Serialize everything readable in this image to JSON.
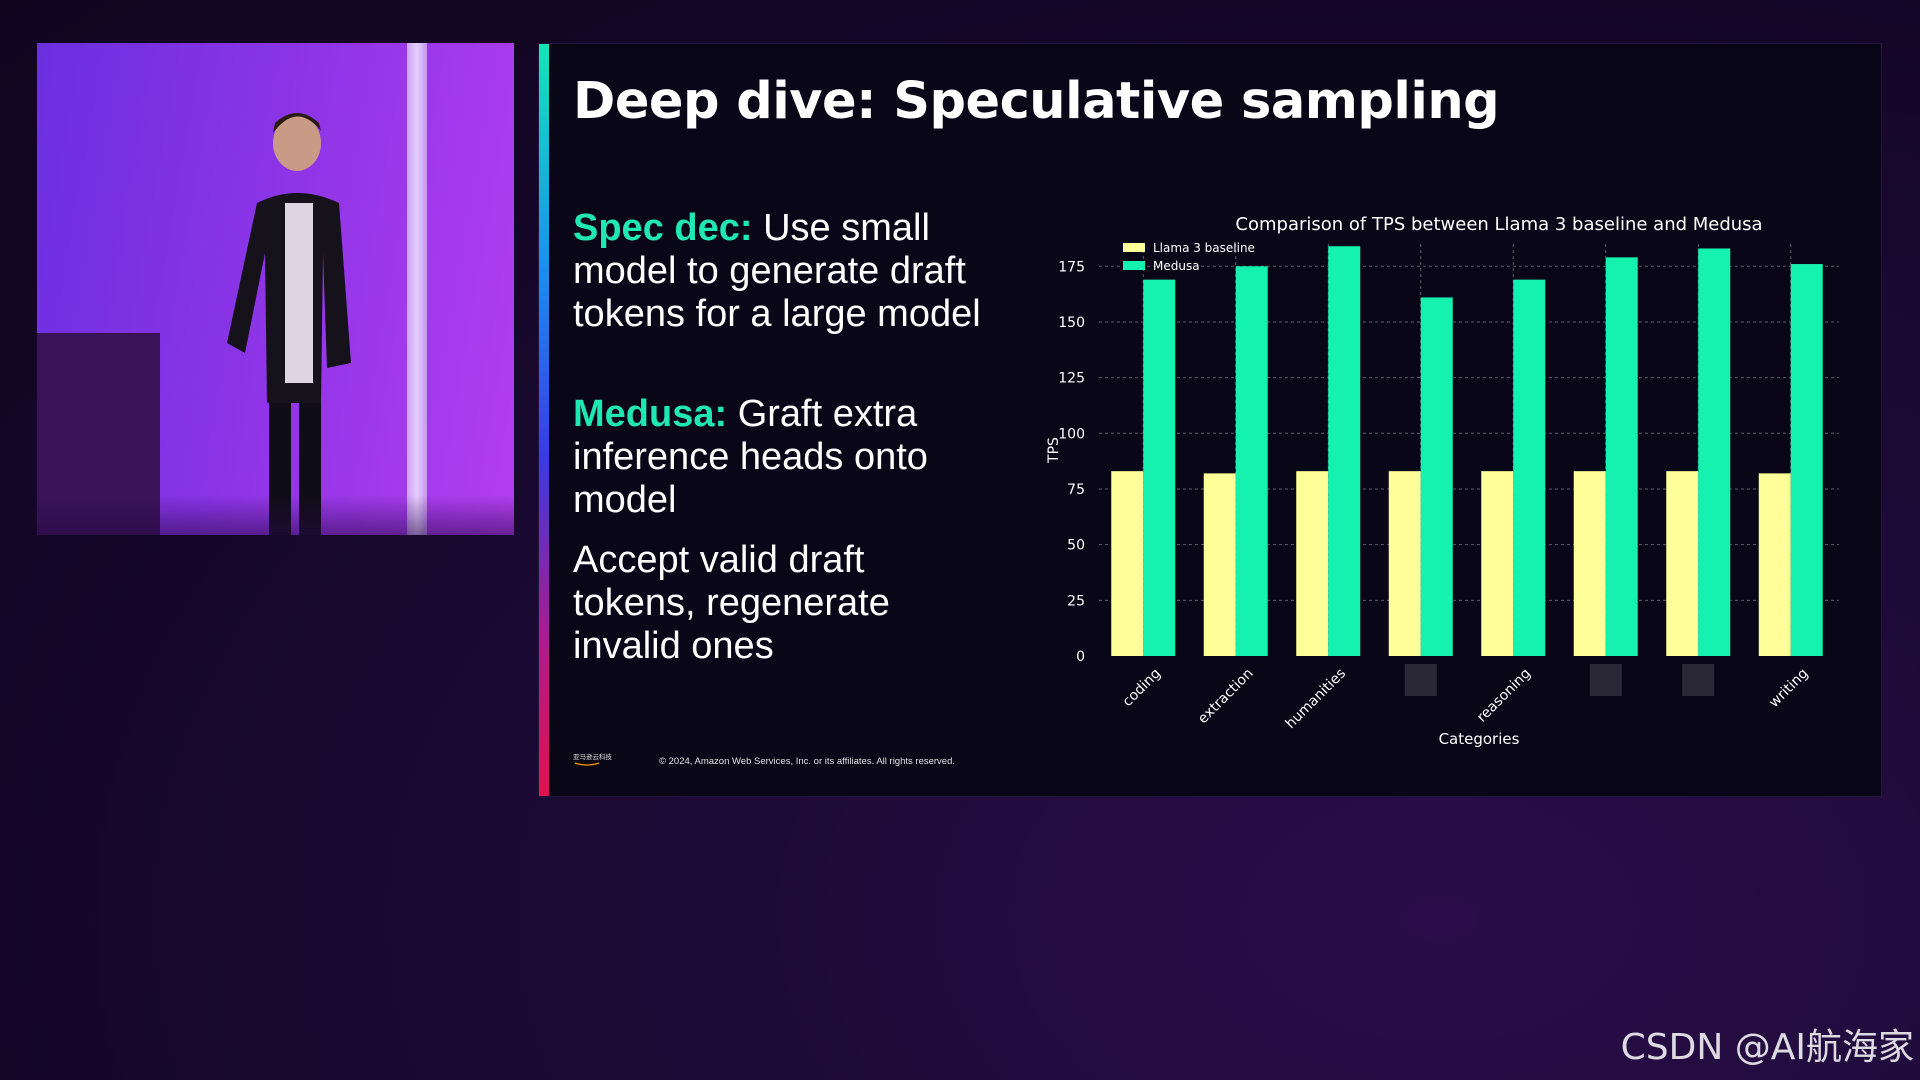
{
  "slide": {
    "title": "Deep dive: Speculative sampling",
    "bullets": [
      {
        "keyword": "Spec dec:",
        "text": " Use small model to generate draft tokens for a large model"
      },
      {
        "keyword": "Medusa:",
        "text": " Graft extra inference heads onto model"
      },
      {
        "keyword": "",
        "text": "Accept valid draft tokens, regenerate invalid ones"
      }
    ],
    "footer_logo_text": "亚马逊云科技",
    "copyright": "© 2024, Amazon Web Services, Inc. or its affiliates. All rights reserved."
  },
  "colors": {
    "accent_green": "#20e8b4",
    "baseline_yellow": "#ffff99",
    "medusa_teal": "#15f2b0"
  },
  "chart_data": {
    "type": "bar",
    "title": "Comparison of TPS between Llama 3 baseline and Medusa",
    "xlabel": "Categories",
    "ylabel": "TPS",
    "ylim": [
      0,
      185
    ],
    "yticks": [
      0,
      25,
      50,
      75,
      100,
      125,
      150,
      175
    ],
    "grid": "dotted",
    "legend_position": "top-left",
    "categories": [
      "coding",
      "extraction",
      "humanities",
      "",
      "reasoning",
      "",
      "",
      "writing"
    ],
    "redacted_categories": [
      3,
      5,
      6
    ],
    "series": [
      {
        "name": "Llama 3 baseline",
        "color": "#ffff99",
        "values": [
          83,
          82,
          83,
          83,
          83,
          83,
          83,
          82
        ]
      },
      {
        "name": "Medusa",
        "color": "#15f2b0",
        "values": [
          169,
          175,
          184,
          161,
          169,
          179,
          183,
          176
        ]
      }
    ]
  },
  "watermark": "CSDN @AI航海家"
}
